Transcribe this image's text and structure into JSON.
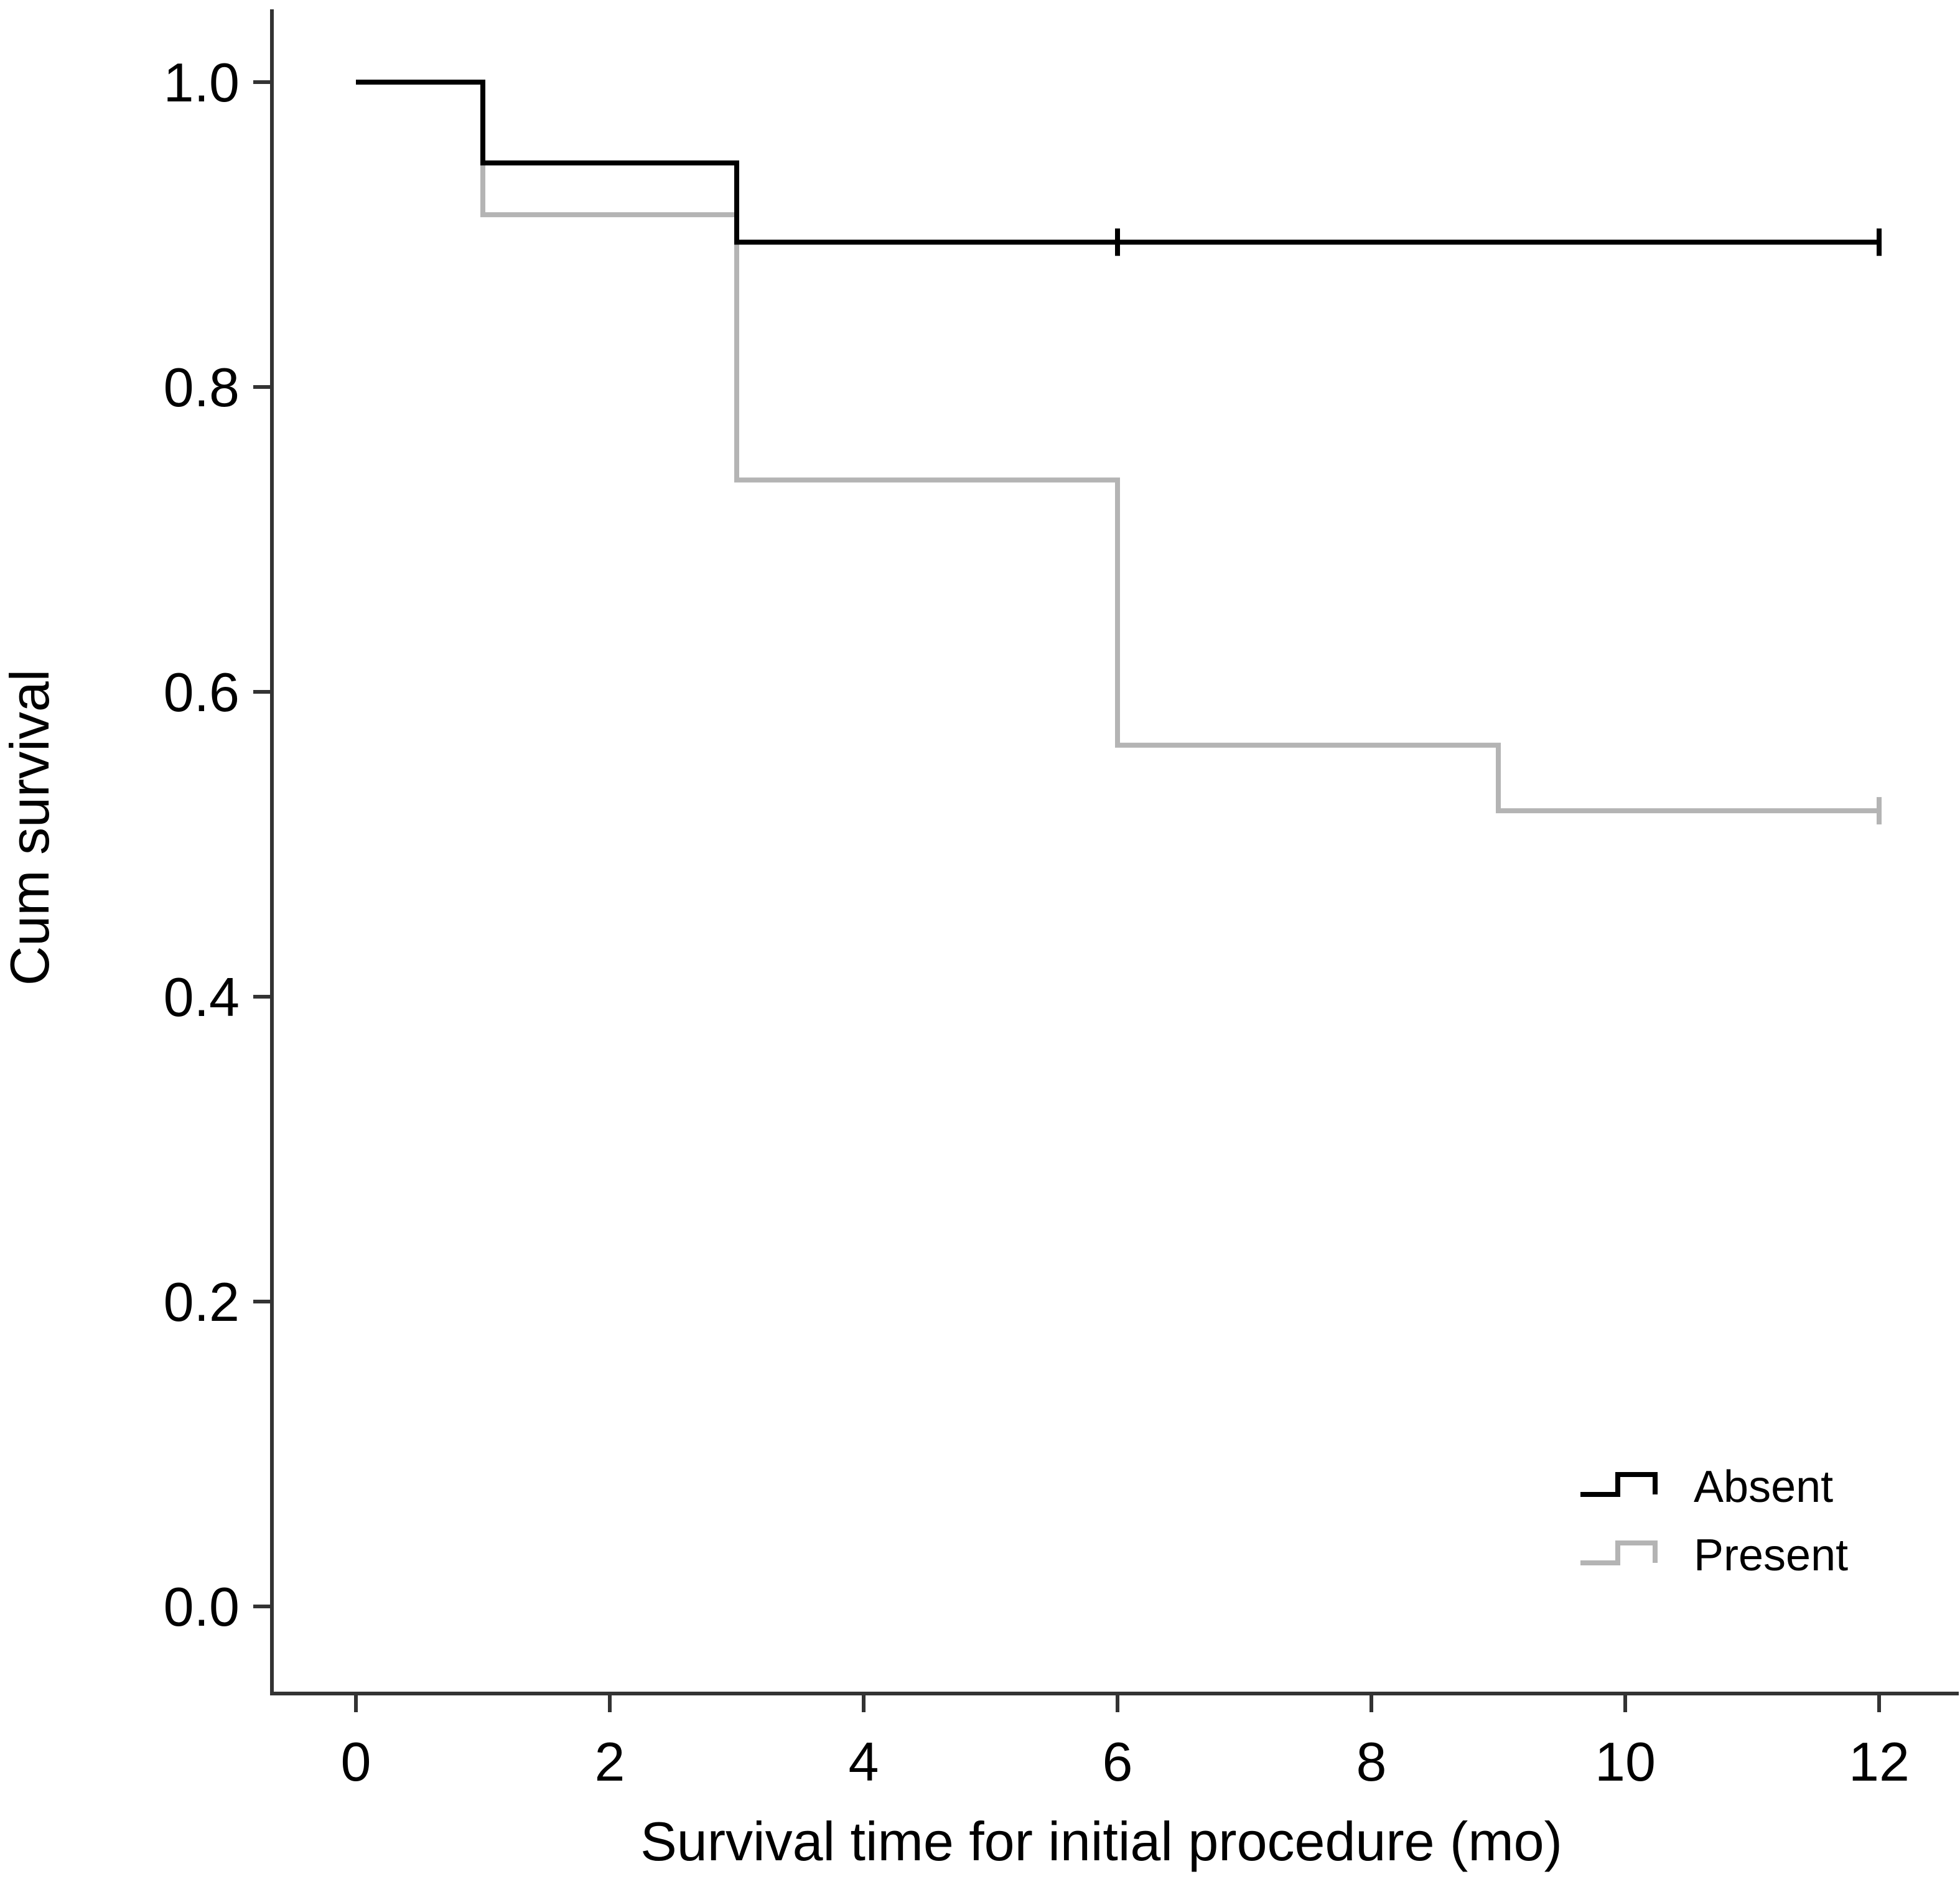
{
  "chart_data": {
    "type": "line",
    "step": true,
    "title": "",
    "xlabel": "Survival time for initial procedure (mo)",
    "ylabel": "Cum survival",
    "xlim": [
      -0.7,
      12.6
    ],
    "ylim": [
      -0.05,
      1.05
    ],
    "xticks": [
      0,
      2,
      4,
      6,
      8,
      10,
      12
    ],
    "yticks": [
      0.0,
      0.2,
      0.4,
      0.6,
      0.8,
      1.0
    ],
    "xtick_labels": [
      "0",
      "2",
      "4",
      "6",
      "8",
      "10",
      "12"
    ],
    "ytick_labels": [
      "0.0",
      "0.2",
      "0.4",
      "0.6",
      "0.8",
      "1.0"
    ],
    "grid": false,
    "legend_position": "bottom-right",
    "series": [
      {
        "name": "Absent",
        "color": "#000000",
        "x": [
          0,
          1,
          3,
          12
        ],
        "y": [
          1.0,
          0.947,
          0.895,
          0.895
        ],
        "censored": [
          6,
          12
        ]
      },
      {
        "name": "Present",
        "color": "#b4b4b4",
        "x": [
          0,
          1,
          3,
          6,
          9,
          12
        ],
        "y": [
          1.0,
          0.913,
          0.739,
          0.565,
          0.522,
          0.522
        ],
        "censored": [
          12
        ]
      }
    ]
  }
}
